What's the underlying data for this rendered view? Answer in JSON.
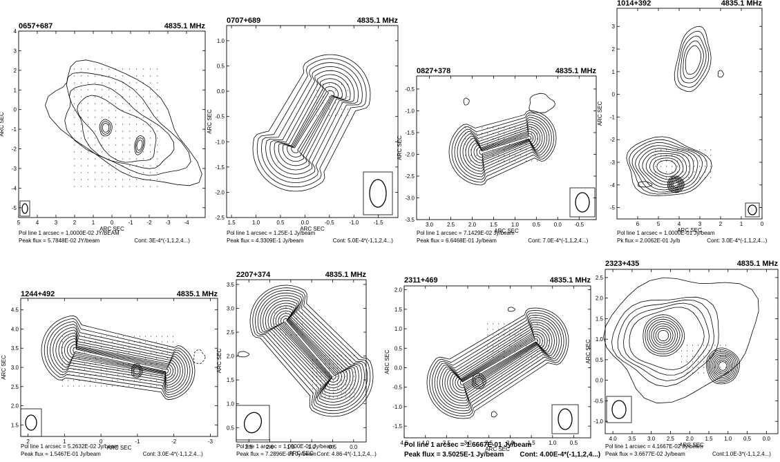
{
  "colors": {
    "ink": "#000000",
    "background": "#ffffff"
  },
  "chart_data": [
    {
      "type": "contour",
      "source": "0657+687",
      "freq": "4835.1 MHz",
      "xlabel": "ARC SEC",
      "ylabel": "ARC SEC",
      "xticks": [
        "5",
        "4",
        "3",
        "2",
        "1",
        "0",
        "-1",
        "-2",
        "-3",
        "-4"
      ],
      "yticks": [
        "4",
        "3",
        "2",
        "1",
        "0",
        "-1",
        "-2",
        "-3",
        "-4",
        "-5"
      ],
      "xlim": [
        5,
        -5
      ],
      "ylim": [
        -5.5,
        4
      ],
      "pol_line": "Pol line 1 arcsec = 1.0000E-02 JY/BEAM",
      "peak": "Peak flux = 5.7848E-02 JY/beam",
      "cont": "Cont: 3E-4*(-1,1,2,4...)"
    },
    {
      "type": "contour",
      "source": "0707+689",
      "freq": "4835.1 MHz",
      "xlabel": "ARC SEC",
      "ylabel": "ARC SEC",
      "xticks": [
        "1.5",
        "1.0",
        "0.5",
        "0.0",
        "-0.5",
        "-1.0",
        "-1.5"
      ],
      "yticks": [
        "1.0",
        "0.5",
        "0.0",
        "-0.5",
        "-1.0",
        "-1.5",
        "-2.0",
        "-2.5"
      ],
      "xlim": [
        1.6,
        -1.9
      ],
      "ylim": [
        -2.5,
        1.3
      ],
      "pol_line": "Pol line 1 arcsec = 1.25E-1 Jy/beam",
      "peak": "Peak flux = 4.3309E-1 Jy/beam",
      "cont": "Cont: 5.0E-4*(-1,1,2,4...)"
    },
    {
      "type": "contour",
      "source": "0827+378",
      "freq": "4835.1 MHz",
      "xlabel": "ARC SEC",
      "ylabel": "ARC SEC",
      "xticks": [
        "3.0",
        "2.5",
        "2.0",
        "1.5",
        "1.0",
        "0.5",
        "0.0",
        "-0.5"
      ],
      "yticks": [
        "-0.5",
        "-1.0",
        "-1.5",
        "-2.0",
        "-2.5",
        "-3.0",
        "-3.5"
      ],
      "xlim": [
        3.3,
        -0.9
      ],
      "ylim": [
        -3.5,
        -0.2
      ],
      "pol_line": "Pol line 1 arcsec = 7.1429E-02 Jy/beam",
      "peak": "Peak flux = 6.6468E-01 Jy/beam",
      "cont": "Cont: 7.0E-4*(-1,1,2,4...)"
    },
    {
      "type": "contour",
      "source": "1014+392",
      "freq": "4835.1 MHz",
      "xlabel": "ARC SEC",
      "ylabel": "ARC SEC",
      "xticks": [
        "6",
        "5",
        "4",
        "3",
        "2",
        "1",
        "0"
      ],
      "yticks": [
        "3",
        "2",
        "1",
        "0",
        "-1",
        "-2",
        "-3",
        "-4",
        "-5"
      ],
      "xlim": [
        7,
        0
      ],
      "ylim": [
        -5.5,
        3.8
      ],
      "pol_line": "Pol line 1 arcsec = 1.0000E-01 Jy/beam",
      "peak": "Pk flux = 2.0062E-01 Jy/b",
      "cont": "Cont: 3.0E-4*(-1,1,2,4...)"
    },
    {
      "type": "contour",
      "source": "1244+492",
      "freq": "4835.1 MHz",
      "xlabel": "ARC SEC",
      "ylabel": "ARC SEC",
      "xticks": [
        "2",
        "1",
        "0",
        "-1",
        "-2",
        "-3"
      ],
      "yticks": [
        "4.5",
        "4.0",
        "3.5",
        "3.0",
        "2.5",
        "2.0",
        "1.5"
      ],
      "xlim": [
        2.2,
        -3.2
      ],
      "ylim": [
        1.2,
        4.8
      ],
      "pol_line": "Pol line 1 arcsec = 5.2632E-02 Jy/beam",
      "peak": "Peak flux = 1.5467E-01 Jy/beam",
      "cont": "Cont: 3.0E-4*(-1,1,2,4...)"
    },
    {
      "type": "contour",
      "source": "2207+374",
      "freq": "4835.1 MHz",
      "xlabel": "ARC SEC",
      "ylabel": "ARC SEC",
      "xticks": [
        "2.5",
        "2.0",
        "1.5",
        "1.0",
        "0.5",
        "0.0"
      ],
      "yticks": [
        "3.5",
        "3.0",
        "2.5",
        "2.0",
        "1.5",
        "1.0",
        "0.5"
      ],
      "xlim": [
        2.8,
        -0.3
      ],
      "ylim": [
        0.2,
        3.6
      ],
      "pol_line": "Pol line 1 arcsec = 1.0000E-01 Jy/beam",
      "peak": "Peak flux = 7.2896E-01 Jy/beam",
      "cont": "Cont: 4.86-4*(-1,1,2,4...)"
    },
    {
      "type": "contour",
      "source": "2311+469",
      "freq": "4835.1 MHz",
      "xlabel": "ARC SEC",
      "ylabel": "ARC SEC",
      "xticks": [
        "4.5",
        "4.0",
        "3.5",
        "3.0",
        "2.5",
        "2.0",
        "1.5",
        "1.0",
        "0.5"
      ],
      "yticks": [
        "2.0",
        "1.5",
        "1.0",
        "0.5",
        "0.0",
        "-0.5",
        "-1.0",
        "-1.5"
      ],
      "xlim": [
        4.5,
        0.1
      ],
      "ylim": [
        -1.8,
        2.1
      ],
      "pol_line": "Pol line 1 arcsec = 1.6667E-01 Jy/beam",
      "peak": "Peak flux = 3.5025E-1 Jy/beam",
      "cont": "Cont: 4.00E-4*(-1,1,2,4...)"
    },
    {
      "type": "contour",
      "source": "2323+435",
      "freq": "4835.1 MHz",
      "xlabel": "ARC SEC",
      "ylabel": "ARC SEC",
      "xticks": [
        "4.0",
        "3.5",
        "3.0",
        "2.5",
        "2.0",
        "1.5",
        "1.0",
        "0.5",
        "0.0"
      ],
      "yticks": [
        "2.5",
        "2.0",
        "1.5",
        "1.0",
        "0.5",
        "0.0",
        "-0.5",
        "-1.0"
      ],
      "xlim": [
        4.2,
        -0.3
      ],
      "ylim": [
        -1.3,
        2.7
      ],
      "pol_line": "Pol line 1 arcsec = 4.1667E-02 Jy/beam",
      "peak": "Peak flux = 3.6677E-02 Jy/beam",
      "cont": "Cont:1.0E-3*(-1,1,2,4...)"
    }
  ]
}
